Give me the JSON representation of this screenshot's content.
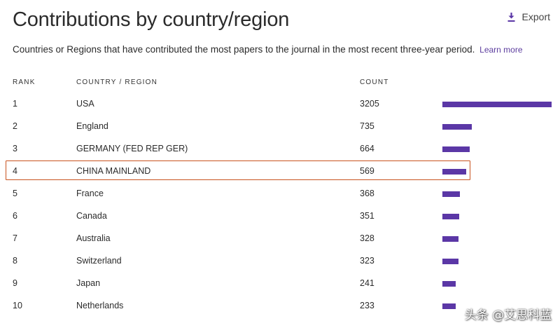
{
  "header": {
    "title": "Contributions by country/region",
    "export_label": "Export",
    "export_icon": "download-icon",
    "subtitle": "Countries or Regions that have contributed the most papers to the journal in the most recent three-year period.",
    "learn_more": "Learn more"
  },
  "table": {
    "columns": {
      "rank": "RANK",
      "country": "COUNTRY / REGION",
      "count": "COUNT"
    },
    "max_count": 3205,
    "bar_color": "#5b37a6",
    "highlight_color": "#c8531f",
    "highlighted_rank": "4",
    "rows": [
      {
        "rank": "1",
        "country": "USA",
        "count": "3205",
        "value": 3205
      },
      {
        "rank": "2",
        "country": "England",
        "count": "735",
        "value": 735
      },
      {
        "rank": "3",
        "country": "GERMANY (FED REP GER)",
        "count": "664",
        "value": 664
      },
      {
        "rank": "4",
        "country": "CHINA MAINLAND",
        "count": "569",
        "value": 569
      },
      {
        "rank": "5",
        "country": "France",
        "count": "368",
        "value": 368
      },
      {
        "rank": "6",
        "country": "Canada",
        "count": "351",
        "value": 351
      },
      {
        "rank": "7",
        "country": "Australia",
        "count": "328",
        "value": 328
      },
      {
        "rank": "8",
        "country": "Switzerland",
        "count": "323",
        "value": 323
      },
      {
        "rank": "9",
        "country": "Japan",
        "count": "241",
        "value": 241
      },
      {
        "rank": "10",
        "country": "Netherlands",
        "count": "233",
        "value": 233
      }
    ]
  },
  "watermark": "头条 @艾思科蓝"
}
